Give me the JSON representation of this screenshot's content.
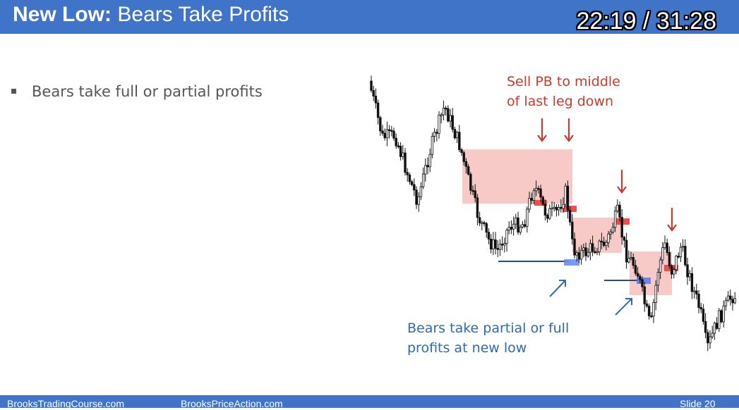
{
  "slide": {
    "title_bold": "New Low:",
    "title_rest": " Bears Take Profits",
    "timer": "22:19 / 31:28",
    "bullet": "Bears take full or partial profits",
    "red_note_line1": "Sell PB to middle",
    "red_note_line2": "of last leg down",
    "blue_note_line1": "Bears take partial or full",
    "blue_note_line2": "profits at new low"
  },
  "footer": {
    "left": "BrooksTradingCourse.com",
    "center": "BrooksPriceAction.com",
    "right": "Slide  20"
  },
  "colors": {
    "header": "#3f74c8",
    "annotation_red": "#c83a2c",
    "annotation_blue": "#2e6aad",
    "zone_pink": "#f6b8b4"
  },
  "icons": {
    "bullet": "square-bullet-icon",
    "sell_arrow": "arrow-down-icon",
    "profit_arrow": "arrow-up-right-icon"
  }
}
